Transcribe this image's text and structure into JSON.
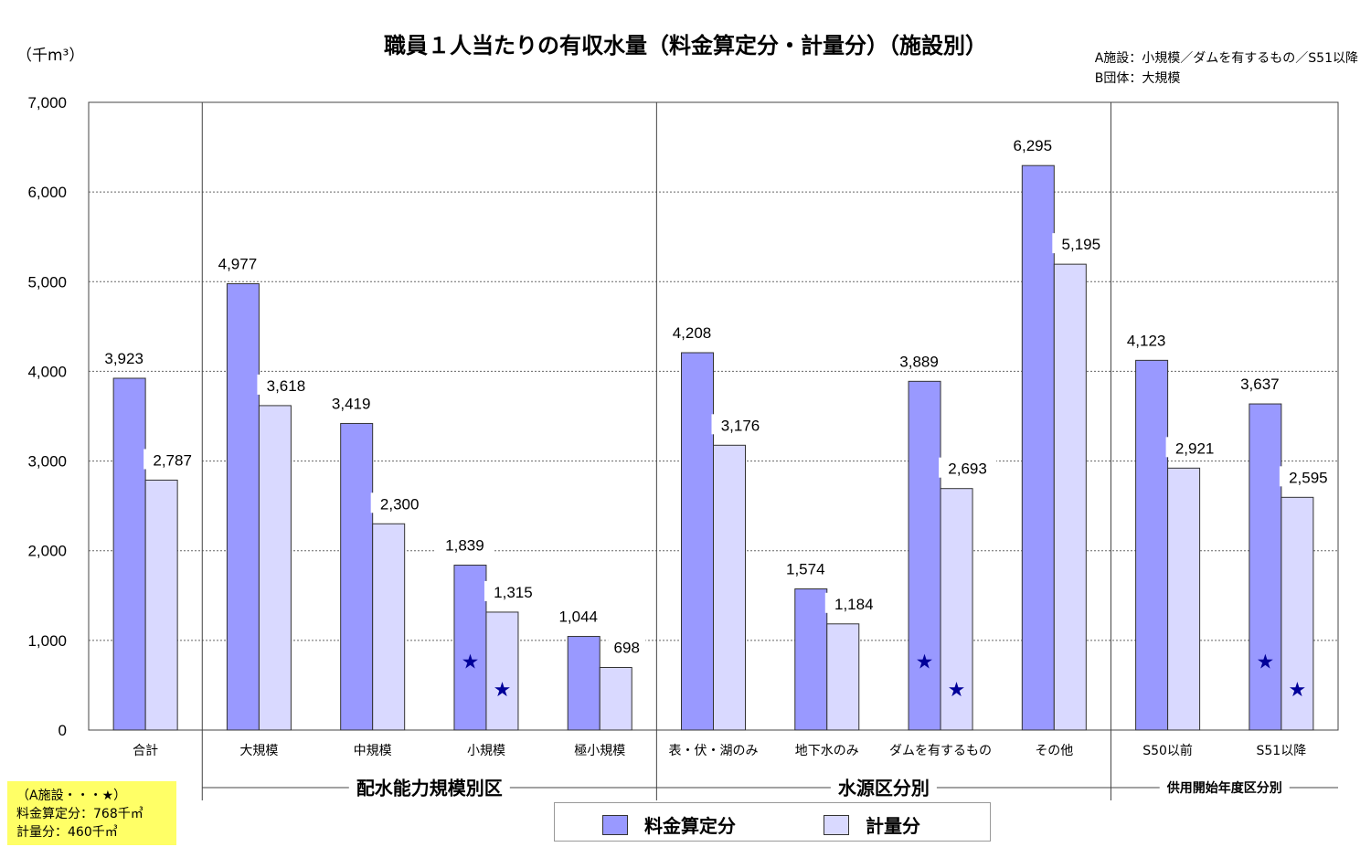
{
  "title": "職員１人当たりの有収水量（料金算定分・計量分）（施設別）",
  "unit": "（千m³）",
  "notes": [
    "A施設：小規模／ダムを有するもの／S51以降",
    "B団体：大規模"
  ],
  "a_box": [
    "（A施設・・・★）",
    "料金算定分：768千㎥",
    "計量分：460千㎥"
  ],
  "colors": {
    "series1": "#9999ff",
    "series2": "#d9d9ff",
    "star": "#000099",
    "a_box": "#ffff66"
  },
  "chart_data": {
    "type": "bar",
    "ylim": [
      0,
      7000
    ],
    "yticks": [
      "0",
      "1,000",
      "2,000",
      "3,000",
      "4,000",
      "5,000",
      "6,000",
      "7,000"
    ],
    "categories": [
      "合計",
      "大規模",
      "中規模",
      "小規模",
      "極小規模",
      "表・伏・湖のみ",
      "地下水のみ",
      "ダムを有するもの",
      "その他",
      "S50以前",
      "S51以降"
    ],
    "series": [
      {
        "name": "料金算定分",
        "values": [
          3923,
          4977,
          3419,
          1839,
          1044,
          4208,
          1574,
          3889,
          6295,
          4123,
          3637
        ],
        "labels": [
          "3,923",
          "4,977",
          "3,419",
          "1,839",
          "1,044",
          "4,208",
          "1,574",
          "3,889",
          "6,295",
          "4,123",
          "3,637"
        ]
      },
      {
        "name": "計量分",
        "values": [
          2787,
          3618,
          2300,
          1315,
          698,
          3176,
          1184,
          2693,
          5195,
          2921,
          2595
        ],
        "labels": [
          "2,787",
          "3,618",
          "2,300",
          "1,315",
          "698",
          "3,176",
          "1,184",
          "2,693",
          "5,195",
          "2,921",
          "2,595"
        ]
      }
    ],
    "groups": [
      {
        "label": "配水能力規模別区",
        "categories": [
          "大規模",
          "中規模",
          "小規模",
          "極小規模"
        ]
      },
      {
        "label": "水源区分別",
        "categories": [
          "表・伏・湖のみ",
          "地下水のみ",
          "ダムを有するもの",
          "その他"
        ]
      },
      {
        "label": "供用開始年度区分別",
        "categories": [
          "S50以前",
          "S51以降"
        ]
      }
    ],
    "stars": [
      {
        "category": "小規模",
        "series1": 768,
        "series2": 460
      },
      {
        "category": "ダムを有するもの",
        "series1": 768,
        "series2": 460
      },
      {
        "category": "S51以降",
        "series1": 768,
        "series2": 460
      }
    ],
    "grid": true,
    "legend_position": "bottom"
  }
}
